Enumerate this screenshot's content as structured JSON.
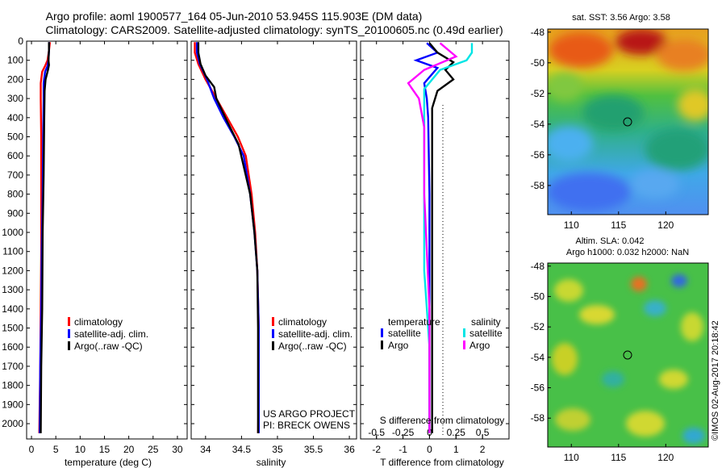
{
  "title": {
    "line1": "Argo profile: aoml 1900577_164 05-Jun-2010 53.945S 115.903E (DM data)",
    "line2": "Climatology: CARS2009. Satellite-adjusted climatology: synTS_20100605.nc (0.49d earlier)"
  },
  "colors": {
    "climatology": "#ff0000",
    "satellite": "#0000ff",
    "argo": "#000000",
    "sal_satellite": "#00e5e5",
    "sal_argo": "#ff00ff"
  },
  "legend12": {
    "climatology": "climatology",
    "satellite": "satellite-adj. clim.",
    "argo": "Argo(..raw -QC)"
  },
  "legend3": {
    "temp_header": "temperature",
    "sal_header": "salinity",
    "satellite": "satellite",
    "argo": "Argo"
  },
  "panel2_note": {
    "line1": "US ARGO PROJECT",
    "line2": "PI: BRECK OWENS"
  },
  "panel3_note": "S difference from climatology",
  "right_top": {
    "title": "sat. SST: 3.56 Argo: 3.58"
  },
  "right_bottom": {
    "title1": "Altim. SLA: 0.042",
    "title2": "Argo h1000: 0.032 h2000: NaN"
  },
  "stamp": "©IMOS 02-Aug-2017 20:18:42",
  "chart_data": [
    {
      "type": "line",
      "xlabel": "temperature (deg C)",
      "ylabel": "",
      "xlim": [
        -1,
        32
      ],
      "ylim": [
        2080,
        0
      ],
      "xticks": [
        "0",
        "5",
        "10",
        "15",
        "20",
        "25",
        "30"
      ],
      "yticks": [
        "0",
        "100",
        "200",
        "300",
        "400",
        "500",
        "600",
        "700",
        "800",
        "900",
        "1000",
        "1100",
        "1200",
        "1300",
        "1400",
        "1500",
        "1600",
        "1700",
        "1800",
        "1900",
        "2000"
      ],
      "series": [
        {
          "name": "climatology",
          "x": [
            3.8,
            3.6,
            3.3,
            2.8,
            2.2,
            1.9,
            1.9,
            2.0,
            2.0,
            2.0,
            1.9,
            1.8,
            1.6
          ],
          "y": [
            5,
            50,
            100,
            130,
            160,
            220,
            300,
            500,
            800,
            1100,
            1400,
            1700,
            2050
          ]
        },
        {
          "name": "satellite-adj. clim.",
          "x": [
            3.6,
            3.6,
            3.5,
            3.3,
            2.8,
            2.5,
            2.5,
            2.4,
            2.3,
            2.1,
            2.0,
            1.8,
            1.7
          ],
          "y": [
            5,
            50,
            100,
            130,
            160,
            220,
            300,
            500,
            800,
            1100,
            1400,
            1700,
            2050
          ]
        },
        {
          "name": "Argo(..raw -QC)",
          "x": [
            3.6,
            3.6,
            3.5,
            3.6,
            3.4,
            2.9,
            2.7,
            2.6,
            2.5,
            2.3,
            2.2,
            2.0,
            1.9
          ],
          "y": [
            5,
            50,
            100,
            125,
            150,
            200,
            260,
            450,
            700,
            1000,
            1400,
            1700,
            2050
          ]
        }
      ]
    },
    {
      "type": "line",
      "xlabel": "salinity",
      "ylabel": "",
      "xlim": [
        33.8,
        36.1
      ],
      "ylim": [
        2080,
        0
      ],
      "xticks": [
        "34",
        "34.5",
        "35",
        "35.5",
        "36"
      ],
      "series": [
        {
          "name": "climatology",
          "x": [
            33.85,
            33.85,
            33.9,
            34.0,
            34.15,
            34.3,
            34.45,
            34.56,
            34.64,
            34.69,
            34.72,
            34.74,
            34.74,
            34.73
          ],
          "y": [
            5,
            60,
            120,
            200,
            300,
            400,
            500,
            600,
            800,
            1000,
            1200,
            1500,
            1800,
            2050
          ]
        },
        {
          "name": "satellite-adj. clim.",
          "x": [
            33.88,
            33.88,
            33.92,
            34.02,
            34.12,
            34.25,
            34.4,
            34.53,
            34.62,
            34.68,
            34.72,
            34.74,
            34.74,
            34.74
          ],
          "y": [
            5,
            60,
            120,
            200,
            300,
            400,
            500,
            600,
            800,
            1000,
            1200,
            1500,
            1800,
            2050
          ]
        },
        {
          "name": "Argo(..raw -QC)",
          "x": [
            33.9,
            33.9,
            33.93,
            34.0,
            34.12,
            34.15,
            34.3,
            34.46,
            34.62,
            34.68,
            34.72,
            34.73,
            34.73,
            34.73
          ],
          "y": [
            5,
            60,
            120,
            180,
            240,
            300,
            420,
            540,
            800,
            1000,
            1200,
            1500,
            1800,
            2050
          ]
        }
      ]
    },
    {
      "type": "line",
      "xlabel": "T difference from climatology",
      "ylabel": "",
      "xlim": [
        -2.6,
        3.0
      ],
      "ylim": [
        2080,
        0
      ],
      "xticks": [
        "-2",
        "-1",
        "0",
        "1",
        "2"
      ],
      "top_xticks": [
        "-0.5",
        "-0.25",
        "0",
        "0.25",
        "0.5"
      ],
      "series": [
        {
          "name": "temperature satellite",
          "x": [
            -0.1,
            0.3,
            -0.5,
            0.3,
            -0.2,
            -0.1,
            -0.05,
            0.0,
            0.0,
            0.0,
            0.0
          ],
          "y": [
            10,
            60,
            100,
            140,
            220,
            300,
            400,
            800,
            1200,
            1600,
            2050
          ]
        },
        {
          "name": "temperature Argo",
          "x": [
            0.0,
            0.3,
            0.9,
            0.6,
            0.9,
            0.3,
            0.1,
            0.1,
            0.1,
            0.1,
            0.1
          ],
          "y": [
            10,
            60,
            110,
            150,
            200,
            260,
            350,
            600,
            1000,
            1500,
            2050
          ]
        },
        {
          "name": "salinity satellite",
          "x": [
            0.4,
            0.4,
            0.35,
            0.1,
            -0.05,
            -0.05,
            -0.05,
            -0.05,
            0.0,
            0.0
          ],
          "y": [
            10,
            60,
            100,
            150,
            250,
            400,
            800,
            1200,
            1600,
            2050
          ]
        },
        {
          "name": "salinity Argo",
          "x": [
            0.1,
            0.25,
            -0.05,
            -0.2,
            -0.1,
            -0.05,
            -0.05,
            0.0,
            0.0
          ],
          "y": [
            10,
            80,
            150,
            220,
            300,
            450,
            800,
            1400,
            2050
          ]
        }
      ]
    },
    {
      "type": "heatmap",
      "title": "sat. SST: 3.56 Argo: 3.58",
      "xticks": [
        "110",
        "115",
        "120"
      ],
      "yticks": [
        "-48",
        "-50",
        "-52",
        "-54",
        "-56",
        "-58"
      ],
      "xlim": [
        107.5,
        124.5
      ],
      "ylim": [
        -59.9,
        -47.8
      ],
      "marker": {
        "lon": 115.903,
        "lat": -53.945
      }
    },
    {
      "type": "heatmap",
      "title": "Altim. SLA: 0.042",
      "xticks": [
        "110",
        "115",
        "120"
      ],
      "yticks": [
        "-48",
        "-50",
        "-52",
        "-54",
        "-56",
        "-58"
      ],
      "xlim": [
        107.5,
        124.5
      ],
      "ylim": [
        -59.9,
        -47.8
      ],
      "marker": {
        "lon": 115.903,
        "lat": -53.945
      }
    }
  ]
}
